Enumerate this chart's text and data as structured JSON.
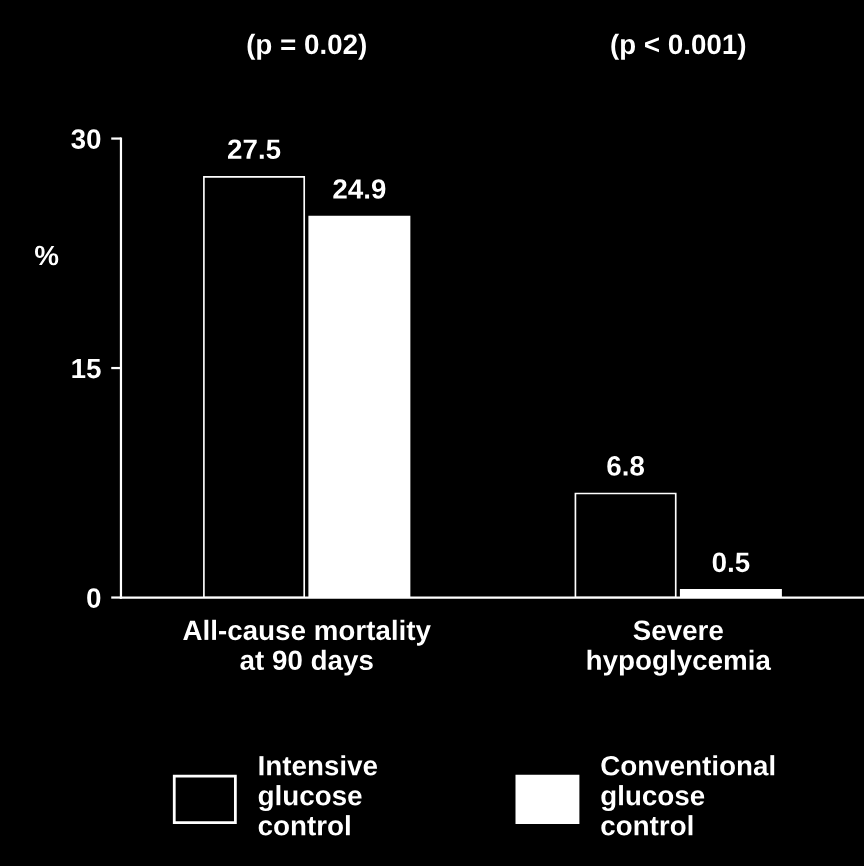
{
  "chart_data": {
    "type": "bar",
    "categories": [
      "All-cause mortality\nat 90 days",
      "Severe\nhypoglycemia"
    ],
    "series": [
      {
        "name": "Intensive\nglucose\ncontrol",
        "color": "#000000",
        "values": [
          27.5,
          6.8
        ]
      },
      {
        "name": "Conventional\nglucose\ncontrol",
        "color": "#ffffff",
        "values": [
          24.9,
          0.5
        ]
      }
    ],
    "ylabel": "%",
    "ylim": [
      0,
      30
    ],
    "yticks": [
      0,
      15,
      30
    ],
    "annotations": [
      "(p = 0.02)",
      "(p < 0.001)"
    ],
    "data_labels": true,
    "legend": "bottom",
    "grid": false
  }
}
